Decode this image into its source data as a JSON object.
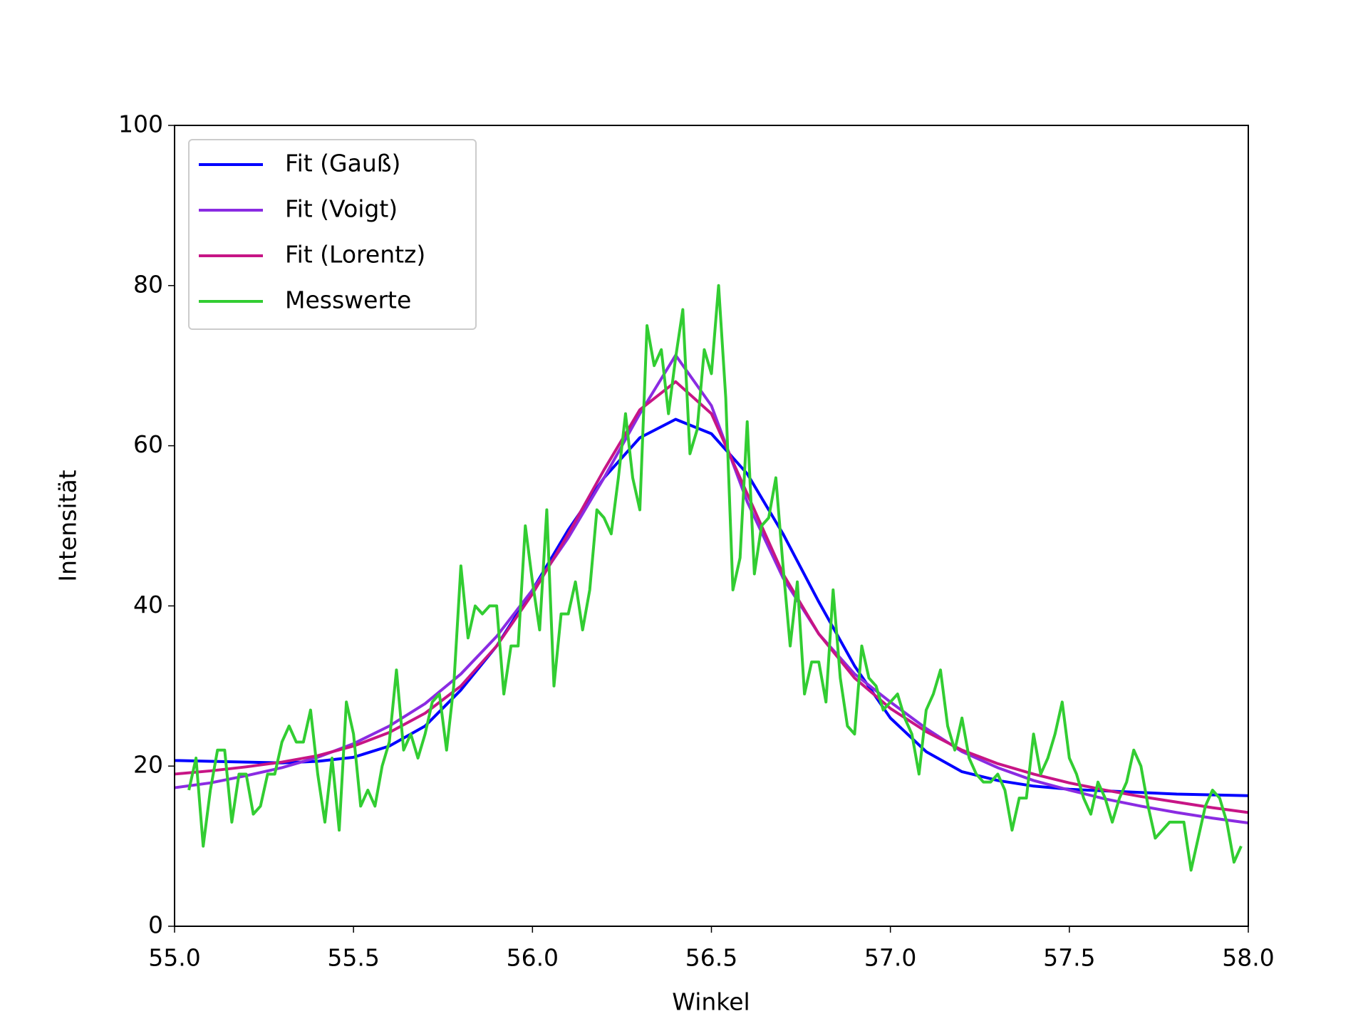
{
  "chart_data": {
    "type": "line",
    "xlabel": "Winkel",
    "ylabel": "Intensität",
    "xlim": [
      55.0,
      58.0
    ],
    "ylim": [
      0,
      100
    ],
    "xticks": [
      {
        "value": 55,
        "label": "55.0"
      },
      55.5,
      {
        "value": 56,
        "label": "56.0"
      },
      56.5,
      {
        "value": 57,
        "label": "57.0"
      },
      57.5,
      {
        "value": 58,
        "label": "58.0"
      }
    ],
    "yticks": [
      0,
      20,
      40,
      60,
      80,
      100
    ],
    "legend": "upper left",
    "series": [
      {
        "name": "Fit (Gauß)",
        "color": "#0000ff",
        "x": [
          55.0,
          55.1,
          55.2,
          55.3,
          55.4,
          55.5,
          55.6,
          55.7,
          55.8,
          55.9,
          56.0,
          56.1,
          56.2,
          56.3,
          56.4,
          56.5,
          56.6,
          56.7,
          56.8,
          56.9,
          57.0,
          57.1,
          57.2,
          57.3,
          57.4,
          57.5,
          57.6,
          57.7,
          57.8,
          57.9,
          58.0
        ],
        "values": [
          20.7,
          20.6,
          20.5,
          20.4,
          20.6,
          21.1,
          22.5,
          25,
          29.5,
          35,
          42,
          49.5,
          56,
          61,
          63.3,
          61.5,
          56.5,
          49,
          40.5,
          32.5,
          26,
          21.8,
          19.3,
          18.2,
          17.5,
          17.1,
          16.9,
          16.7,
          16.5,
          16.4,
          16.3
        ]
      },
      {
        "name": "Fit (Voigt)",
        "color": "#8a2be2",
        "x": [
          55.0,
          55.1,
          55.2,
          55.3,
          55.4,
          55.5,
          55.6,
          55.7,
          55.8,
          55.9,
          56.0,
          56.1,
          56.2,
          56.3,
          56.4,
          56.5,
          56.6,
          56.7,
          56.8,
          56.9,
          57.0,
          57.1,
          57.2,
          57.3,
          57.4,
          57.5,
          57.6,
          57.7,
          57.8,
          57.9,
          58.0
        ],
        "values": [
          17.3,
          17.9,
          18.8,
          19.8,
          21.1,
          22.8,
          25,
          27.8,
          31.5,
          36.2,
          42,
          48.5,
          56,
          64,
          71.3,
          65,
          53,
          43.5,
          36.5,
          31.5,
          28,
          24.7,
          21.8,
          19.8,
          18.2,
          17,
          15.9,
          15,
          14.2,
          13.5,
          12.9
        ]
      },
      {
        "name": "Fit (Lorentz)",
        "color": "#c71585",
        "x": [
          55.0,
          55.1,
          55.2,
          55.3,
          55.4,
          55.5,
          55.6,
          55.7,
          55.8,
          55.9,
          56.0,
          56.1,
          56.2,
          56.3,
          56.4,
          56.5,
          56.6,
          56.7,
          56.8,
          56.9,
          57.0,
          57.1,
          57.2,
          57.3,
          57.4,
          57.5,
          57.6,
          57.7,
          57.8,
          57.9,
          58.0
        ],
        "values": [
          19,
          19.4,
          19.9,
          20.5,
          21.3,
          22.5,
          24.2,
          26.6,
          30,
          35,
          41.5,
          49,
          57,
          64.5,
          68,
          64,
          54,
          44,
          36.5,
          31,
          27.2,
          24.3,
          22,
          20.3,
          19,
          17.9,
          17,
          16.2,
          15.5,
          14.8,
          14.2
        ]
      },
      {
        "name": "Messwerte",
        "color": "#32cd32",
        "x": [
          55.04,
          55.06,
          55.08,
          55.1,
          55.12,
          55.14,
          55.16,
          55.18,
          55.2,
          55.22,
          55.24,
          55.26,
          55.28,
          55.3,
          55.32,
          55.34,
          55.36,
          55.38,
          55.4,
          55.42,
          55.44,
          55.46,
          55.48,
          55.5,
          55.52,
          55.54,
          55.56,
          55.58,
          55.6,
          55.62,
          55.64,
          55.66,
          55.68,
          55.7,
          55.72,
          55.74,
          55.76,
          55.78,
          55.8,
          55.82,
          55.84,
          55.86,
          55.88,
          55.9,
          55.92,
          55.94,
          55.96,
          55.98,
          56.0,
          56.02,
          56.04,
          56.06,
          56.08,
          56.1,
          56.12,
          56.14,
          56.16,
          56.18,
          56.2,
          56.22,
          56.24,
          56.26,
          56.28,
          56.3,
          56.32,
          56.34,
          56.36,
          56.38,
          56.4,
          56.42,
          56.44,
          56.46,
          56.48,
          56.5,
          56.52,
          56.54,
          56.56,
          56.58,
          56.6,
          56.62,
          56.64,
          56.66,
          56.68,
          56.7,
          56.72,
          56.74,
          56.76,
          56.78,
          56.8,
          56.82,
          56.84,
          56.86,
          56.88,
          56.9,
          56.92,
          56.94,
          56.96,
          56.98,
          57.0,
          57.02,
          57.04,
          57.06,
          57.08,
          57.1,
          57.12,
          57.14,
          57.16,
          57.18,
          57.2,
          57.22,
          57.24,
          57.26,
          57.28,
          57.3,
          57.32,
          57.34,
          57.36,
          57.38,
          57.4,
          57.42,
          57.44,
          57.46,
          57.48,
          57.5,
          57.52,
          57.54,
          57.56,
          57.58,
          57.6,
          57.62,
          57.64,
          57.66,
          57.68,
          57.7,
          57.72,
          57.74,
          57.76,
          57.78,
          57.8,
          57.82,
          57.84,
          57.86,
          57.88,
          57.9,
          57.92,
          57.94,
          57.96,
          57.98
        ],
        "values": [
          17,
          21,
          10,
          17,
          22,
          22,
          13,
          19,
          19,
          14,
          15,
          19,
          19,
          23,
          25,
          23,
          23,
          27,
          19,
          13,
          21,
          12,
          28,
          24,
          15,
          17,
          15,
          20,
          23,
          32,
          22,
          24,
          21,
          24,
          28,
          29,
          22,
          30,
          45,
          36,
          40,
          39,
          40,
          40,
          29,
          35,
          35,
          50,
          43,
          37,
          52,
          30,
          39,
          39,
          43,
          37,
          42,
          52,
          51,
          49,
          56,
          64,
          56,
          52,
          75,
          70,
          72,
          64,
          71,
          77,
          59,
          62,
          72,
          69,
          80,
          66,
          42,
          46,
          63,
          44,
          50,
          51,
          56,
          45,
          35,
          43,
          29,
          33,
          33,
          28,
          42,
          31,
          25,
          24,
          35,
          31,
          30,
          27,
          28,
          29,
          26,
          24,
          19,
          27,
          29,
          32,
          25,
          22,
          26,
          21,
          19,
          18,
          18,
          19,
          17,
          12,
          16,
          16,
          24,
          19,
          21,
          24,
          28,
          21,
          19,
          16,
          14,
          18,
          16,
          13,
          16,
          18,
          22,
          20,
          15,
          11,
          12,
          13,
          13,
          13,
          7,
          11,
          15,
          17,
          16,
          13,
          8,
          10
        ]
      }
    ]
  }
}
